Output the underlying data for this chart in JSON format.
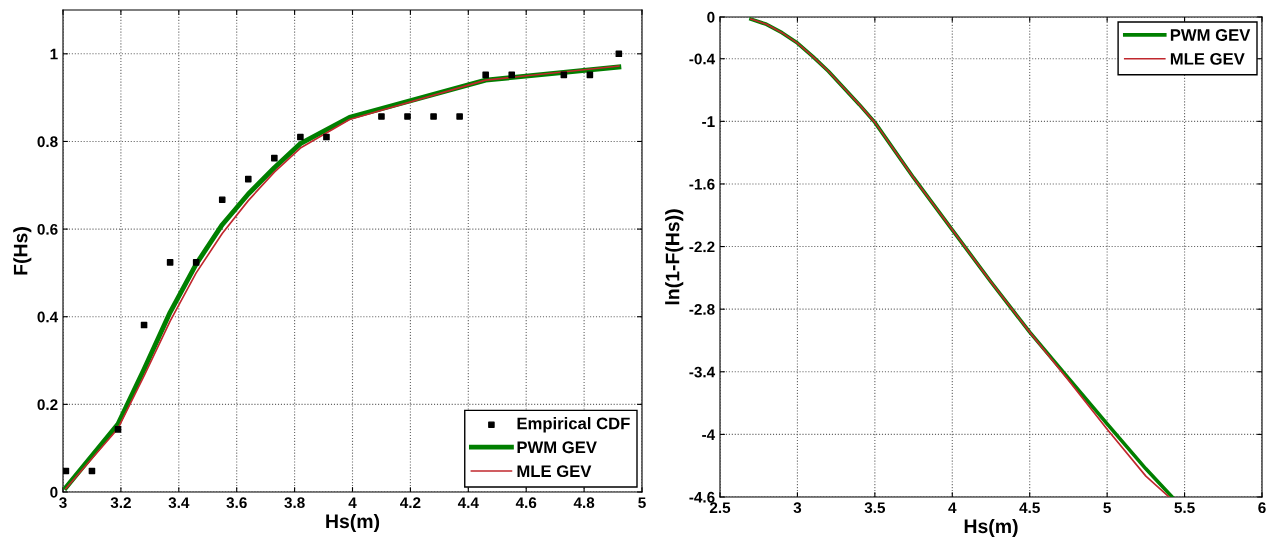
{
  "chart_data": [
    {
      "type": "line",
      "xlabel": "Hs(m)",
      "ylabel": "F(Hs)",
      "xlim": [
        3,
        5
      ],
      "ylim": [
        0,
        1.1
      ],
      "xticks": [
        3,
        3.2,
        3.4,
        3.6,
        3.8,
        4,
        4.2,
        4.4,
        4.6,
        4.8,
        5
      ],
      "yticks": [
        0,
        0.2,
        0.4,
        0.6,
        0.8,
        1
      ],
      "grid": true,
      "legend": "bottom right",
      "series": [
        {
          "name": "Empirical CDF",
          "type": "scatter",
          "marker": "square",
          "color": "#000000",
          "x": [
            3.01,
            3.1,
            3.19,
            3.28,
            3.37,
            3.46,
            3.55,
            3.64,
            3.73,
            3.82,
            3.91,
            4.1,
            4.19,
            4.28,
            4.37,
            4.46,
            4.55,
            4.73,
            4.82,
            4.92
          ],
          "values": [
            0.048,
            0.048,
            0.143,
            0.381,
            0.524,
            0.524,
            0.667,
            0.714,
            0.762,
            0.81,
            0.81,
            0.857,
            0.857,
            0.857,
            0.857,
            0.952,
            0.952,
            0.952,
            0.952,
            1.0
          ]
        },
        {
          "name": "PWM GEV",
          "type": "line",
          "color": "#007f00",
          "x": [
            3.01,
            3.19,
            3.28,
            3.37,
            3.46,
            3.55,
            3.64,
            3.73,
            3.82,
            3.99,
            4.46,
            4.92
          ],
          "values": [
            0.01,
            0.155,
            0.28,
            0.41,
            0.52,
            0.61,
            0.68,
            0.74,
            0.795,
            0.855,
            0.94,
            0.97
          ]
        },
        {
          "name": "MLE GEV",
          "type": "line",
          "color": "#c0272d",
          "x": [
            3.01,
            3.19,
            3.28,
            3.37,
            3.46,
            3.55,
            3.64,
            3.73,
            3.82,
            3.99,
            4.46,
            4.92
          ],
          "values": [
            0.008,
            0.145,
            0.265,
            0.39,
            0.5,
            0.59,
            0.665,
            0.73,
            0.785,
            0.85,
            0.94,
            0.972
          ]
        }
      ]
    },
    {
      "type": "line",
      "xlabel": "Hs(m)",
      "ylabel": "ln(1-F(Hs))",
      "xlim": [
        2.5,
        6
      ],
      "ylim": [
        -4.6,
        0
      ],
      "xticks": [
        2.5,
        3,
        3.5,
        4,
        4.5,
        5,
        5.5,
        6
      ],
      "yticks": [
        0,
        -0.4,
        -1,
        -1.6,
        -2.2,
        -2.8,
        -3.4,
        -4,
        -4.6
      ],
      "grid": true,
      "legend": "top right",
      "series": [
        {
          "name": "PWM GEV",
          "color": "#007f00",
          "x": [
            2.7,
            2.8,
            2.9,
            3.0,
            3.1,
            3.2,
            3.3,
            3.4,
            3.5,
            3.75,
            4.0,
            4.25,
            4.5,
            4.75,
            5.0,
            5.25,
            5.42
          ],
          "values": [
            -0.02,
            -0.07,
            -0.15,
            -0.25,
            -0.38,
            -0.52,
            -0.68,
            -0.84,
            -1.01,
            -1.54,
            -2.04,
            -2.54,
            -3.02,
            -3.46,
            -3.9,
            -4.33,
            -4.6
          ]
        },
        {
          "name": "MLE GEV",
          "color": "#c0272d",
          "x": [
            2.7,
            2.8,
            2.9,
            3.0,
            3.1,
            3.2,
            3.3,
            3.4,
            3.5,
            3.75,
            4.0,
            4.25,
            4.5,
            4.75,
            5.0,
            5.25,
            5.4
          ],
          "values": [
            -0.02,
            -0.07,
            -0.15,
            -0.25,
            -0.38,
            -0.52,
            -0.68,
            -0.84,
            -1.01,
            -1.54,
            -2.04,
            -2.54,
            -3.02,
            -3.48,
            -3.95,
            -4.4,
            -4.6
          ]
        }
      ]
    }
  ]
}
